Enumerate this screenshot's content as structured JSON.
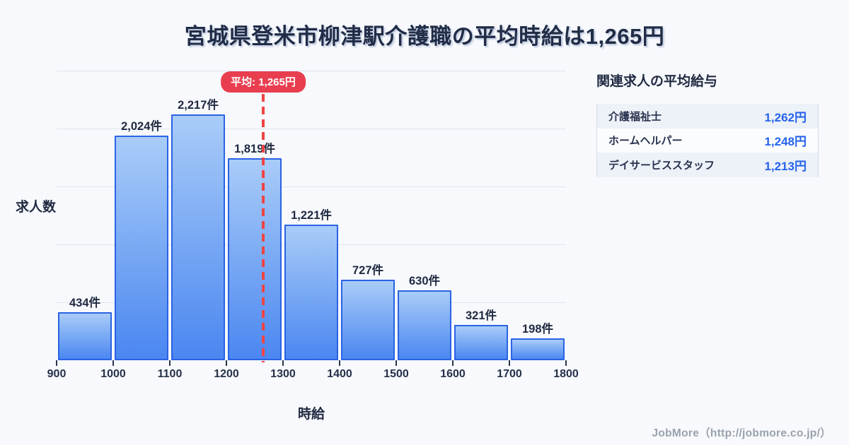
{
  "title": "宮城県登米市柳津駅介護職の平均時給は1,265円",
  "chart_data": {
    "type": "bar",
    "title": "宮城県登米市柳津駅介護職の平均時給は1,265円",
    "xlabel": "時給",
    "ylabel": "求人数",
    "x_ticks": [
      "900",
      "1000",
      "1100",
      "1200",
      "1300",
      "1400",
      "1500",
      "1600",
      "1700",
      "1800"
    ],
    "x_range": [
      900,
      1800
    ],
    "bin_width": 100,
    "values": [
      434,
      2024,
      2217,
      1819,
      1221,
      727,
      630,
      321,
      198
    ],
    "labels": [
      "434件",
      "2,024件",
      "2,217件",
      "1,819件",
      "1,221件",
      "727件",
      "630件",
      "321件",
      "198件"
    ],
    "grid": "horizontal-faint",
    "mean": {
      "value": 1265,
      "label": "平均: 1,265円"
    }
  },
  "related": {
    "heading": "関連求人の平均給与",
    "rows": [
      {
        "label": "介護福祉士",
        "value": "1,262円"
      },
      {
        "label": "ホームヘルパー",
        "value": "1,248円"
      },
      {
        "label": "デイサービススタッフ",
        "value": "1,213円"
      }
    ]
  },
  "footer": {
    "credit": "JobMore（http://jobmore.co.jp/）"
  },
  "colors": {
    "background": "#f7f9fc",
    "bar_top": "#a9ccf8",
    "bar_bottom": "#4b87f1",
    "bar_border": "#2a63e4",
    "mean_line": "#ef4444",
    "badge_bg": "#e83e4f",
    "value_text": "#2563eb",
    "title_text": "#212d47"
  }
}
